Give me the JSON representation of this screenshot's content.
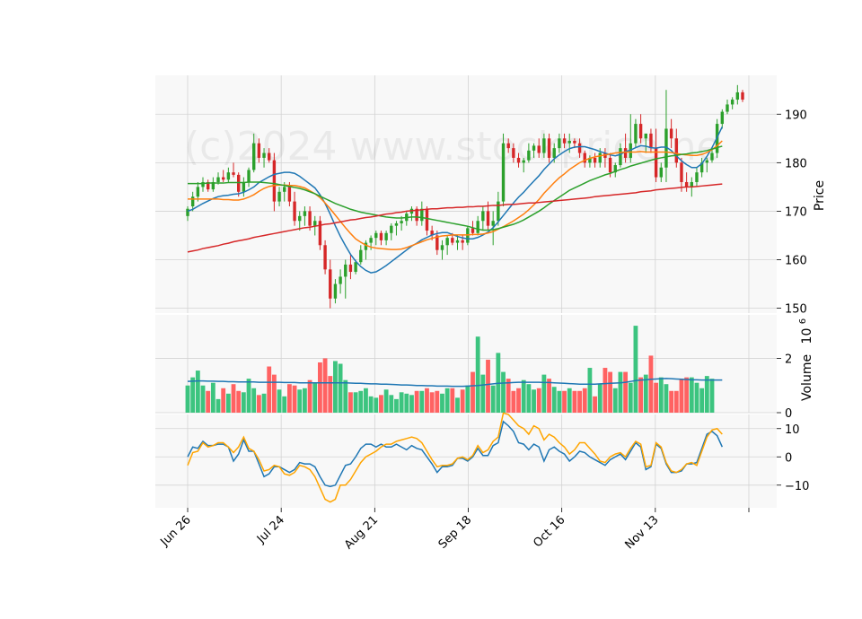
{
  "chart_data": {
    "type": "candlestick",
    "watermark": "(c)2024 www.stockprice.ne",
    "x_tick_labels": [
      "Jun 26",
      "Jul 24",
      "Aug 21",
      "Sep 18",
      "Oct 16",
      "Nov 13",
      ""
    ],
    "panels": {
      "price": {
        "ylabel": "Price",
        "ylim": [
          149,
          198
        ],
        "yticks": [
          150,
          160,
          170,
          180,
          190
        ],
        "ma_series": [
          {
            "key": "ma_short",
            "color": "#1f77b4"
          },
          {
            "key": "ma_mid",
            "color": "#ff7f0e"
          },
          {
            "key": "ma_long",
            "color": "#2ca02c"
          },
          {
            "key": "ma_200",
            "color": "#d62728"
          }
        ]
      },
      "volume": {
        "ylabel": "Volume",
        "ylabel_exponent": "10",
        "ylabel_power": "6",
        "ylim": [
          0,
          3.6
        ],
        "yticks": [
          0,
          2
        ],
        "ma_color": "#1f77b4"
      },
      "oscillator": {
        "ylim": [
          -18,
          15
        ],
        "yticks": [
          10,
          0,
          -10
        ],
        "series": [
          {
            "key": "osc_a",
            "color": "#1f77b4"
          },
          {
            "key": "osc_b",
            "color": "#ffa500"
          }
        ]
      }
    },
    "colors": {
      "up": "#2ca02c",
      "down": "#d62728",
      "up_volume": "#3cc47f",
      "down_volume": "#ff6262",
      "panel_bg": "#f8f8f8",
      "grid": "#d3d3d3"
    },
    "candles": [
      [
        169,
        171,
        168,
        170.5
      ],
      [
        171,
        174,
        170,
        173
      ],
      [
        173,
        176,
        172,
        175
      ],
      [
        175,
        177,
        174,
        176
      ],
      [
        176,
        176.5,
        174,
        174.5
      ],
      [
        174.5,
        177,
        174,
        176
      ],
      [
        176,
        178,
        175.5,
        177
      ],
      [
        177,
        178.5,
        176,
        176.5
      ],
      [
        176.5,
        179,
        176,
        178
      ],
      [
        178,
        180,
        177,
        177.5
      ],
      [
        177.5,
        178,
        173,
        174
      ],
      [
        174,
        177,
        173,
        176
      ],
      [
        176,
        179,
        175,
        178.5
      ],
      [
        178.5,
        186,
        178,
        184
      ],
      [
        184,
        185,
        180,
        181
      ],
      [
        181,
        183,
        179,
        182
      ],
      [
        182,
        183,
        180,
        180.5
      ],
      [
        180.5,
        182,
        170,
        172
      ],
      [
        172,
        175,
        171,
        174
      ],
      [
        174,
        176,
        172,
        175
      ],
      [
        175,
        176,
        171,
        172
      ],
      [
        172,
        174,
        167,
        168
      ],
      [
        168,
        170,
        166,
        169
      ],
      [
        169,
        171,
        167,
        170
      ],
      [
        170,
        171,
        166,
        167
      ],
      [
        167,
        169,
        165,
        168
      ],
      [
        168,
        169,
        162,
        163
      ],
      [
        163,
        164,
        157,
        158
      ],
      [
        158,
        160,
        150,
        152
      ],
      [
        152,
        156,
        151,
        155
      ],
      [
        155,
        158,
        153,
        156.5
      ],
      [
        156.5,
        160,
        152,
        159
      ],
      [
        159,
        161,
        156,
        157.5
      ],
      [
        157.5,
        160,
        157,
        159.5
      ],
      [
        159.5,
        163,
        159,
        162
      ],
      [
        162,
        164,
        160,
        163.5
      ],
      [
        163.5,
        165,
        162,
        164.5
      ],
      [
        164.5,
        166,
        163,
        165.5
      ],
      [
        165.5,
        166,
        163,
        164
      ],
      [
        164,
        166,
        163,
        165.5
      ],
      [
        165.5,
        167.5,
        164,
        167
      ],
      [
        167,
        168,
        165,
        167.5
      ],
      [
        167.5,
        169,
        166,
        168
      ],
      [
        168,
        170,
        167,
        169.5
      ],
      [
        169.5,
        171,
        168,
        170.5
      ],
      [
        170.5,
        171,
        167,
        168
      ],
      [
        168,
        172,
        167,
        170.5
      ],
      [
        170.5,
        171,
        165,
        166
      ],
      [
        166,
        167,
        164,
        165
      ],
      [
        165,
        166,
        161,
        162
      ],
      [
        162,
        164,
        160,
        163
      ],
      [
        163,
        165,
        161,
        164.5
      ],
      [
        164.5,
        165.5,
        163,
        163.5
      ],
      [
        163.5,
        165,
        162,
        164
      ],
      [
        164,
        165,
        162,
        163.5
      ],
      [
        163.5,
        167,
        163,
        166.5
      ],
      [
        166.5,
        168,
        165,
        165.5
      ],
      [
        165.5,
        169,
        165,
        168
      ],
      [
        168,
        171,
        166,
        170
      ],
      [
        170,
        172,
        166,
        167
      ],
      [
        167,
        170,
        163,
        168
      ],
      [
        168,
        174,
        167,
        172
      ],
      [
        172,
        186,
        171,
        184
      ],
      [
        184,
        185,
        182,
        183
      ],
      [
        183,
        184,
        180,
        181
      ],
      [
        181,
        182,
        179,
        180
      ],
      [
        180,
        181,
        178,
        180.5
      ],
      [
        180.5,
        184,
        180,
        182.5
      ],
      [
        182.5,
        184,
        181,
        183.5
      ],
      [
        183.5,
        185,
        181,
        182
      ],
      [
        182,
        186,
        181,
        185
      ],
      [
        185,
        186,
        180,
        181
      ],
      [
        181,
        184,
        180,
        183
      ],
      [
        183,
        186,
        182,
        185
      ],
      [
        185,
        186,
        183,
        184
      ],
      [
        184,
        186,
        182,
        184.5
      ],
      [
        184.5,
        185,
        183,
        184
      ],
      [
        184,
        185,
        181,
        182
      ],
      [
        182,
        182.5,
        179,
        180
      ],
      [
        180,
        181.5,
        179,
        181
      ],
      [
        181,
        182,
        179,
        180
      ],
      [
        180,
        183,
        179,
        182
      ],
      [
        182,
        183,
        179,
        181
      ],
      [
        181,
        182,
        177,
        178
      ],
      [
        178,
        180,
        177,
        179.5
      ],
      [
        179.5,
        184,
        179,
        183
      ],
      [
        183,
        186,
        180,
        181
      ],
      [
        181,
        190,
        180,
        184
      ],
      [
        184,
        189,
        183,
        188
      ],
      [
        188,
        190,
        184,
        185
      ],
      [
        185,
        186,
        182,
        186
      ],
      [
        186,
        187,
        182,
        183
      ],
      [
        183,
        187,
        176,
        177
      ],
      [
        177,
        180,
        176,
        179
      ],
      [
        179,
        195,
        176,
        187
      ],
      [
        187,
        189,
        183,
        185
      ],
      [
        185,
        187,
        179,
        180
      ],
      [
        180,
        181,
        174,
        176
      ],
      [
        176,
        178,
        174,
        175
      ],
      [
        175,
        177,
        173,
        176
      ],
      [
        176,
        179,
        175,
        178
      ],
      [
        178,
        181,
        177,
        180
      ],
      [
        180,
        181,
        178,
        180.5
      ],
      [
        180.5,
        183,
        180,
        182
      ],
      [
        182,
        189,
        181,
        188
      ],
      [
        188,
        191,
        187,
        190.5
      ],
      [
        190.5,
        193,
        190,
        192
      ],
      [
        192,
        193.5,
        191,
        193
      ],
      [
        193,
        196,
        192,
        194.5
      ],
      [
        194.5,
        195,
        192.5,
        193
      ]
    ],
    "volume": [
      1.0,
      1.3,
      1.55,
      1.0,
      0.8,
      1.1,
      0.5,
      0.9,
      0.7,
      1.05,
      0.8,
      0.75,
      1.25,
      0.9,
      0.65,
      0.7,
      1.7,
      1.4,
      0.85,
      0.6,
      1.05,
      1.0,
      0.85,
      0.9,
      1.2,
      1.1,
      1.85,
      2.0,
      1.35,
      1.9,
      1.8,
      1.2,
      0.75,
      0.75,
      0.8,
      0.9,
      0.6,
      0.55,
      0.65,
      0.85,
      0.65,
      0.5,
      0.75,
      0.7,
      0.65,
      0.8,
      0.8,
      0.9,
      0.75,
      0.8,
      0.7,
      0.9,
      0.9,
      0.55,
      0.85,
      1.0,
      1.5,
      2.8,
      1.4,
      1.95,
      1.0,
      2.2,
      1.5,
      1.25,
      0.8,
      0.9,
      1.2,
      1.05,
      0.85,
      0.9,
      1.4,
      1.25,
      0.95,
      0.8,
      0.8,
      0.9,
      0.8,
      0.8,
      0.9,
      1.65,
      0.6,
      1.05,
      1.65,
      1.5,
      0.9,
      1.5,
      1.5,
      1.1,
      3.2,
      1.3,
      1.4,
      2.1,
      1.1,
      1.3,
      1.05,
      0.8,
      0.8,
      1.25,
      1.3,
      1.3,
      1.1,
      0.9,
      1.35,
      1.25
    ],
    "ma_short": [
      170,
      170.4,
      171,
      171.6,
      172.1,
      172.6,
      173,
      173.2,
      173.3,
      173.5,
      173.6,
      173.9,
      174.4,
      175,
      175.9,
      176.5,
      177.1,
      177.6,
      177.8,
      178,
      178,
      177.8,
      177.2,
      176.4,
      175.6,
      174.8,
      173.4,
      171.6,
      169.4,
      167,
      164.8,
      162.9,
      161.1,
      159.7,
      158.6,
      157.8,
      157.3,
      157.5,
      158.1,
      158.8,
      159.6,
      160.4,
      161.2,
      162,
      162.8,
      163.4,
      164.1,
      164.6,
      165.1,
      165.4,
      165.6,
      165.6,
      165.2,
      164.8,
      164.5,
      164.3,
      164.3,
      164.6,
      165.1,
      165.7,
      166.6,
      167.8,
      169.1,
      170.4,
      171.7,
      172.9,
      173.9,
      175.1,
      176.2,
      177.3,
      178.6,
      179.7,
      180.8,
      181.6,
      182.3,
      182.9,
      183.2,
      183.3,
      183.3,
      183,
      182.7,
      182.3,
      182,
      181.6,
      181.4,
      181.7,
      182.3,
      182.6,
      183.1,
      183.5,
      183.4,
      183.1,
      183,
      183.2,
      183.2,
      182.5,
      181.4,
      180.4,
      179.6,
      179,
      179,
      179.8,
      181.3,
      183.1,
      185.2,
      187.4
    ],
    "ma_mid": [
      172.5,
      172.5,
      172.5,
      172.5,
      172.5,
      172.5,
      172.5,
      172.4,
      172.4,
      172.3,
      172.3,
      172.5,
      172.9,
      173.4,
      174.1,
      174.7,
      175.1,
      175.3,
      175.4,
      175.4,
      175.3,
      175.3,
      175.1,
      174.8,
      174.2,
      173.6,
      172.8,
      171.7,
      170.5,
      169.2,
      167.9,
      166.6,
      165.4,
      164.3,
      163.6,
      163,
      162.6,
      162.4,
      162.3,
      162.2,
      162.1,
      162.1,
      162.2,
      162.5,
      162.9,
      163.3,
      163.7,
      164.1,
      164.4,
      164.7,
      164.9,
      165,
      165.1,
      165.1,
      165.1,
      165.1,
      165.2,
      165.2,
      165.3,
      165.5,
      165.8,
      166.3,
      166.8,
      167.4,
      168,
      168.7,
      169.4,
      170.3,
      171.3,
      172.4,
      173.7,
      174.8,
      175.9,
      176.9,
      177.7,
      178.6,
      179.3,
      180,
      180.5,
      180.9,
      181.2,
      181.4,
      181.6,
      181.8,
      182,
      182.1,
      182.2,
      182.2,
      182.2,
      182.3,
      182.2,
      182.2,
      182.2,
      182.2,
      182.2,
      182.1,
      181.9,
      181.7,
      181.6,
      181.5,
      181.5,
      181.7,
      182.1,
      182.7,
      183.5,
      184.5
    ],
    "ma_long": [
      175.7,
      175.7,
      175.7,
      175.7,
      175.8,
      175.8,
      175.8,
      175.8,
      175.9,
      175.9,
      175.9,
      175.9,
      176,
      176,
      176,
      175.9,
      175.8,
      175.7,
      175.5,
      175.3,
      175.1,
      174.9,
      174.7,
      174.4,
      174,
      173.6,
      173.1,
      172.6,
      172.1,
      171.6,
      171.2,
      170.8,
      170.4,
      170.1,
      169.8,
      169.6,
      169.4,
      169.2,
      169,
      168.8,
      168.7,
      168.6,
      168.6,
      168.7,
      168.8,
      168.8,
      168.7,
      168.5,
      168.3,
      168.1,
      167.9,
      167.7,
      167.5,
      167.3,
      167.1,
      166.9,
      166.6,
      166.3,
      166.1,
      166.1,
      166.2,
      166.4,
      166.7,
      167,
      167.3,
      167.7,
      168.2,
      168.8,
      169.4,
      170,
      170.7,
      171.5,
      172.2,
      172.9,
      173.6,
      174.3,
      174.8,
      175.3,
      175.8,
      176.3,
      176.7,
      177.1,
      177.5,
      177.8,
      178.2,
      178.6,
      178.9,
      179.3,
      179.6,
      179.9,
      180.2,
      180.5,
      180.8,
      181,
      181.2,
      181.4,
      181.5,
      181.7,
      181.8,
      182,
      182.1,
      182.3,
      182.5,
      182.8,
      183.1,
      183.4
    ],
    "ma_200": [
      161.6,
      161.8,
      162,
      162.3,
      162.5,
      162.7,
      162.9,
      163.2,
      163.4,
      163.7,
      163.9,
      164.1,
      164.3,
      164.6,
      164.8,
      165,
      165.2,
      165.4,
      165.6,
      165.8,
      166,
      166.2,
      166.4,
      166.6,
      166.7,
      166.9,
      167.1,
      167.3,
      167.4,
      167.6,
      167.8,
      168,
      168.2,
      168.3,
      168.5,
      168.7,
      168.8,
      169,
      169.2,
      169.4,
      169.5,
      169.7,
      169.8,
      170,
      170.1,
      170.2,
      170.3,
      170.4,
      170.5,
      170.5,
      170.6,
      170.7,
      170.7,
      170.8,
      170.8,
      170.9,
      170.9,
      171,
      171,
      171.1,
      171.2,
      171.2,
      171.3,
      171.4,
      171.4,
      171.5,
      171.6,
      171.7,
      171.7,
      171.8,
      171.9,
      172,
      172.1,
      172.2,
      172.3,
      172.4,
      172.5,
      172.6,
      172.7,
      172.8,
      173,
      173.1,
      173.2,
      173.3,
      173.4,
      173.5,
      173.6,
      173.7,
      173.8,
      174,
      174.1,
      174.2,
      174.4,
      174.5,
      174.6,
      174.7,
      174.8,
      174.9,
      175,
      175,
      175.1,
      175.2,
      175.3,
      175.4,
      175.5,
      175.6
    ],
    "ma_volume": [
      1.15,
      1.16,
      1.17,
      1.17,
      1.16,
      1.16,
      1.15,
      1.15,
      1.14,
      1.14,
      1.13,
      1.13,
      1.13,
      1.13,
      1.12,
      1.12,
      1.12,
      1.12,
      1.12,
      1.11,
      1.11,
      1.11,
      1.1,
      1.1,
      1.1,
      1.1,
      1.1,
      1.1,
      1.1,
      1.1,
      1.1,
      1.1,
      1.09,
      1.08,
      1.08,
      1.07,
      1.06,
      1.06,
      1.05,
      1.05,
      1.04,
      1.03,
      1.02,
      1.02,
      1.01,
      1.0,
      1.0,
      0.99,
      0.99,
      0.98,
      0.98,
      0.98,
      0.97,
      0.97,
      0.97,
      0.98,
      0.99,
      1.0,
      1.02,
      1.04,
      1.06,
      1.08,
      1.09,
      1.1,
      1.11,
      1.12,
      1.12,
      1.12,
      1.12,
      1.12,
      1.11,
      1.11,
      1.1,
      1.09,
      1.08,
      1.07,
      1.06,
      1.05,
      1.05,
      1.05,
      1.05,
      1.06,
      1.07,
      1.08,
      1.09,
      1.1,
      1.12,
      1.15,
      1.18,
      1.2,
      1.21,
      1.23,
      1.24,
      1.25,
      1.26,
      1.25,
      1.24,
      1.23,
      1.22,
      1.21,
      1.21,
      1.2,
      1.2,
      1.2,
      1.2,
      1.2
    ],
    "osc_a": [
      0,
      3.5,
      3,
      5.5,
      4,
      4,
      4.5,
      4.5,
      3.5,
      -1.5,
      1,
      6,
      2,
      2,
      -2.5,
      -7,
      -6,
      -3.5,
      -3.5,
      -4.5,
      -5.5,
      -4.5,
      -2,
      -2.5,
      -2.5,
      -3.5,
      -7,
      -10,
      -10.5,
      -10,
      -6.5,
      -3,
      -2.5,
      0,
      3,
      4.5,
      4.5,
      3.5,
      4.5,
      3.5,
      3.5,
      4.5,
      3.5,
      2.5,
      4,
      3,
      2.5,
      0,
      -2.5,
      -5.5,
      -3.5,
      -3.5,
      -3,
      -0.5,
      -0.5,
      -1.5,
      0,
      3,
      0.5,
      0.5,
      4,
      5,
      12.5,
      11,
      9,
      5,
      4.5,
      2.5,
      4.5,
      3.5,
      -1.5,
      2.5,
      3.5,
      2,
      1,
      -1.5,
      0,
      2,
      1.5,
      0,
      -1,
      -2,
      -3,
      -1,
      0,
      1,
      -1,
      2,
      5,
      3.5,
      -4.5,
      -3.5,
      4.5,
      3,
      -2.5,
      -5.5,
      -5.5,
      -5,
      -2.5,
      -2.5,
      -2,
      3,
      8,
      9,
      7.5,
      3.5
    ],
    "osc_b": [
      -3,
      1.5,
      2,
      5,
      3.5,
      4,
      5,
      5,
      3.5,
      1.5,
      3.5,
      7,
      3,
      2,
      -1,
      -5,
      -4.5,
      -3,
      -3.5,
      -6,
      -6.5,
      -5.5,
      -3,
      -3.5,
      -4.5,
      -7,
      -11,
      -15,
      -16,
      -15,
      -10,
      -10,
      -8,
      -5,
      -2,
      0,
      1,
      2,
      3.5,
      4.5,
      4.5,
      5.5,
      6,
      6.5,
      7,
      6.5,
      5,
      2,
      -1,
      -3.5,
      -3,
      -3,
      -2.5,
      -0.5,
      0,
      -1,
      0.5,
      4,
      1.5,
      2.5,
      5.5,
      7,
      15.5,
      15,
      13,
      11,
      10,
      8,
      11,
      10,
      6,
      8,
      7,
      5,
      3.5,
      1,
      2.5,
      5,
      5,
      3,
      1,
      -1.5,
      -2,
      0,
      1,
      1.5,
      0,
      3,
      5.5,
      4.5,
      -3.5,
      -3,
      5,
      3.5,
      -2,
      -5,
      -5.5,
      -4.5,
      -2.5,
      -2,
      -3,
      2,
      7,
      9.5,
      10,
      8
    ]
  }
}
